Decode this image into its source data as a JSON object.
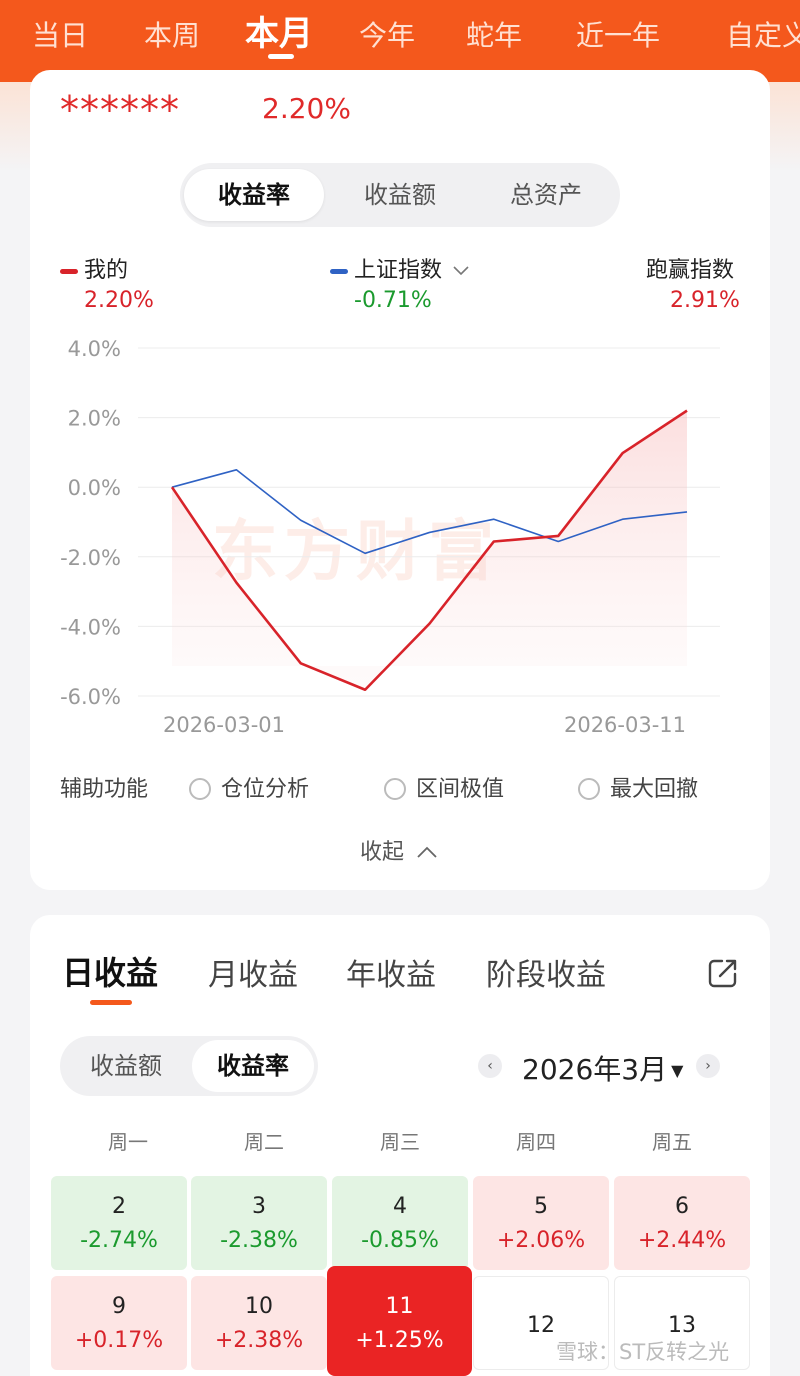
{
  "top_tabs": [
    "当日",
    "本周",
    "本月",
    "今年",
    "蛇年",
    "近一年",
    "自定义"
  ],
  "account": {
    "masked_name": "******",
    "return": "2.20%"
  },
  "metric_tabs": [
    "收益率",
    "收益额",
    "总资产"
  ],
  "legend": {
    "mine_label": "我的",
    "mine_value": "2.20%",
    "index_label": "上证指数",
    "index_value": "-0.71%",
    "beat_label": "跑赢指数",
    "beat_value": "2.91%"
  },
  "watermark": "东方财富",
  "chart_data": {
    "type": "line",
    "x": [
      "2026-03-01",
      "2026-03-02",
      "2026-03-03",
      "2026-03-04",
      "2026-03-05",
      "2026-03-06",
      "2026-03-09",
      "2026-03-10",
      "2026-03-11"
    ],
    "x_tick_labels": [
      "2026-03-01",
      "2026-03-11"
    ],
    "y_tick_labels": [
      "4.0%",
      "2.0%",
      "0.0%",
      "-2.0%",
      "-4.0%",
      "-6.0%"
    ],
    "ylim": [
      -6.0,
      4.0
    ],
    "series": [
      {
        "name": "我的",
        "color": "#d8232a",
        "values": [
          0.0,
          -2.74,
          -5.06,
          -5.82,
          -3.92,
          -1.56,
          -1.4,
          0.98,
          2.2
        ]
      },
      {
        "name": "上证指数",
        "color": "#2f62c4",
        "values": [
          0.0,
          0.5,
          -0.95,
          -1.9,
          -1.3,
          -0.92,
          -1.56,
          -0.92,
          -0.71
        ]
      }
    ],
    "grid": true
  },
  "aux": {
    "label": "辅助功能",
    "options": [
      "仓位分析",
      "区间极值",
      "最大回撤"
    ]
  },
  "collapse": "收起",
  "period_tabs": [
    "日收益",
    "月收益",
    "年收益",
    "阶段收益"
  ],
  "cal_toggle": [
    "收益额",
    "收益率"
  ],
  "calendar": {
    "month": "2026年3月",
    "weekdays": [
      "周一",
      "周二",
      "周三",
      "周四",
      "周五"
    ],
    "rows": [
      [
        {
          "day": "2",
          "value": "-2.74%",
          "state": "down"
        },
        {
          "day": "3",
          "value": "-2.38%",
          "state": "down"
        },
        {
          "day": "4",
          "value": "-0.85%",
          "state": "down"
        },
        {
          "day": "5",
          "value": "+2.06%",
          "state": "up"
        },
        {
          "day": "6",
          "value": "+2.44%",
          "state": "up"
        }
      ],
      [
        {
          "day": "9",
          "value": "+0.17%",
          "state": "up"
        },
        {
          "day": "10",
          "value": "+2.38%",
          "state": "up"
        },
        {
          "day": "11",
          "value": "+1.25%",
          "state": "selected"
        },
        {
          "day": "12",
          "value": "",
          "state": "empty"
        },
        {
          "day": "13",
          "value": "",
          "state": "empty"
        }
      ]
    ]
  },
  "footer_watermark": "雪球：ST反转之光"
}
